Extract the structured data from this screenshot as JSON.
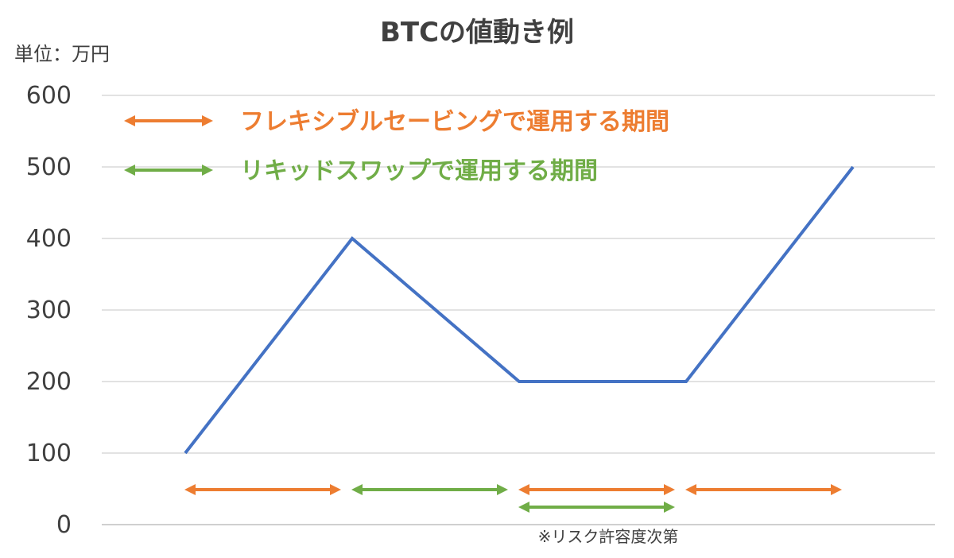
{
  "chart_data": {
    "type": "line",
    "title": "BTCの値動き例",
    "unit_label": "単位：万円",
    "ylim": [
      0,
      600
    ],
    "y_ticks": [
      0,
      100,
      200,
      300,
      400,
      500,
      600
    ],
    "grid": true,
    "series": [
      {
        "values": [
          100,
          400,
          200,
          200,
          500
        ],
        "color": "#4472C4"
      }
    ],
    "legend": [
      {
        "label": "フレキシブルセービングで運用する期間",
        "color": "#ED7D31"
      },
      {
        "label": "リキッドスワップで運用する期間",
        "color": "#70AD47"
      }
    ],
    "periods": [
      {
        "from": 0,
        "to": 1,
        "kind": "flexible",
        "color": "#ED7D31",
        "row": 0
      },
      {
        "from": 1,
        "to": 2,
        "kind": "liquid",
        "color": "#70AD47",
        "row": 0
      },
      {
        "from": 2,
        "to": 3,
        "kind": "flexible",
        "color": "#ED7D31",
        "row": 0
      },
      {
        "from": 2,
        "to": 3,
        "kind": "liquid",
        "color": "#70AD47",
        "row": 1
      },
      {
        "from": 3,
        "to": 4,
        "kind": "flexible",
        "color": "#ED7D31",
        "row": 0
      }
    ],
    "note": "※リスク許容度次第"
  }
}
